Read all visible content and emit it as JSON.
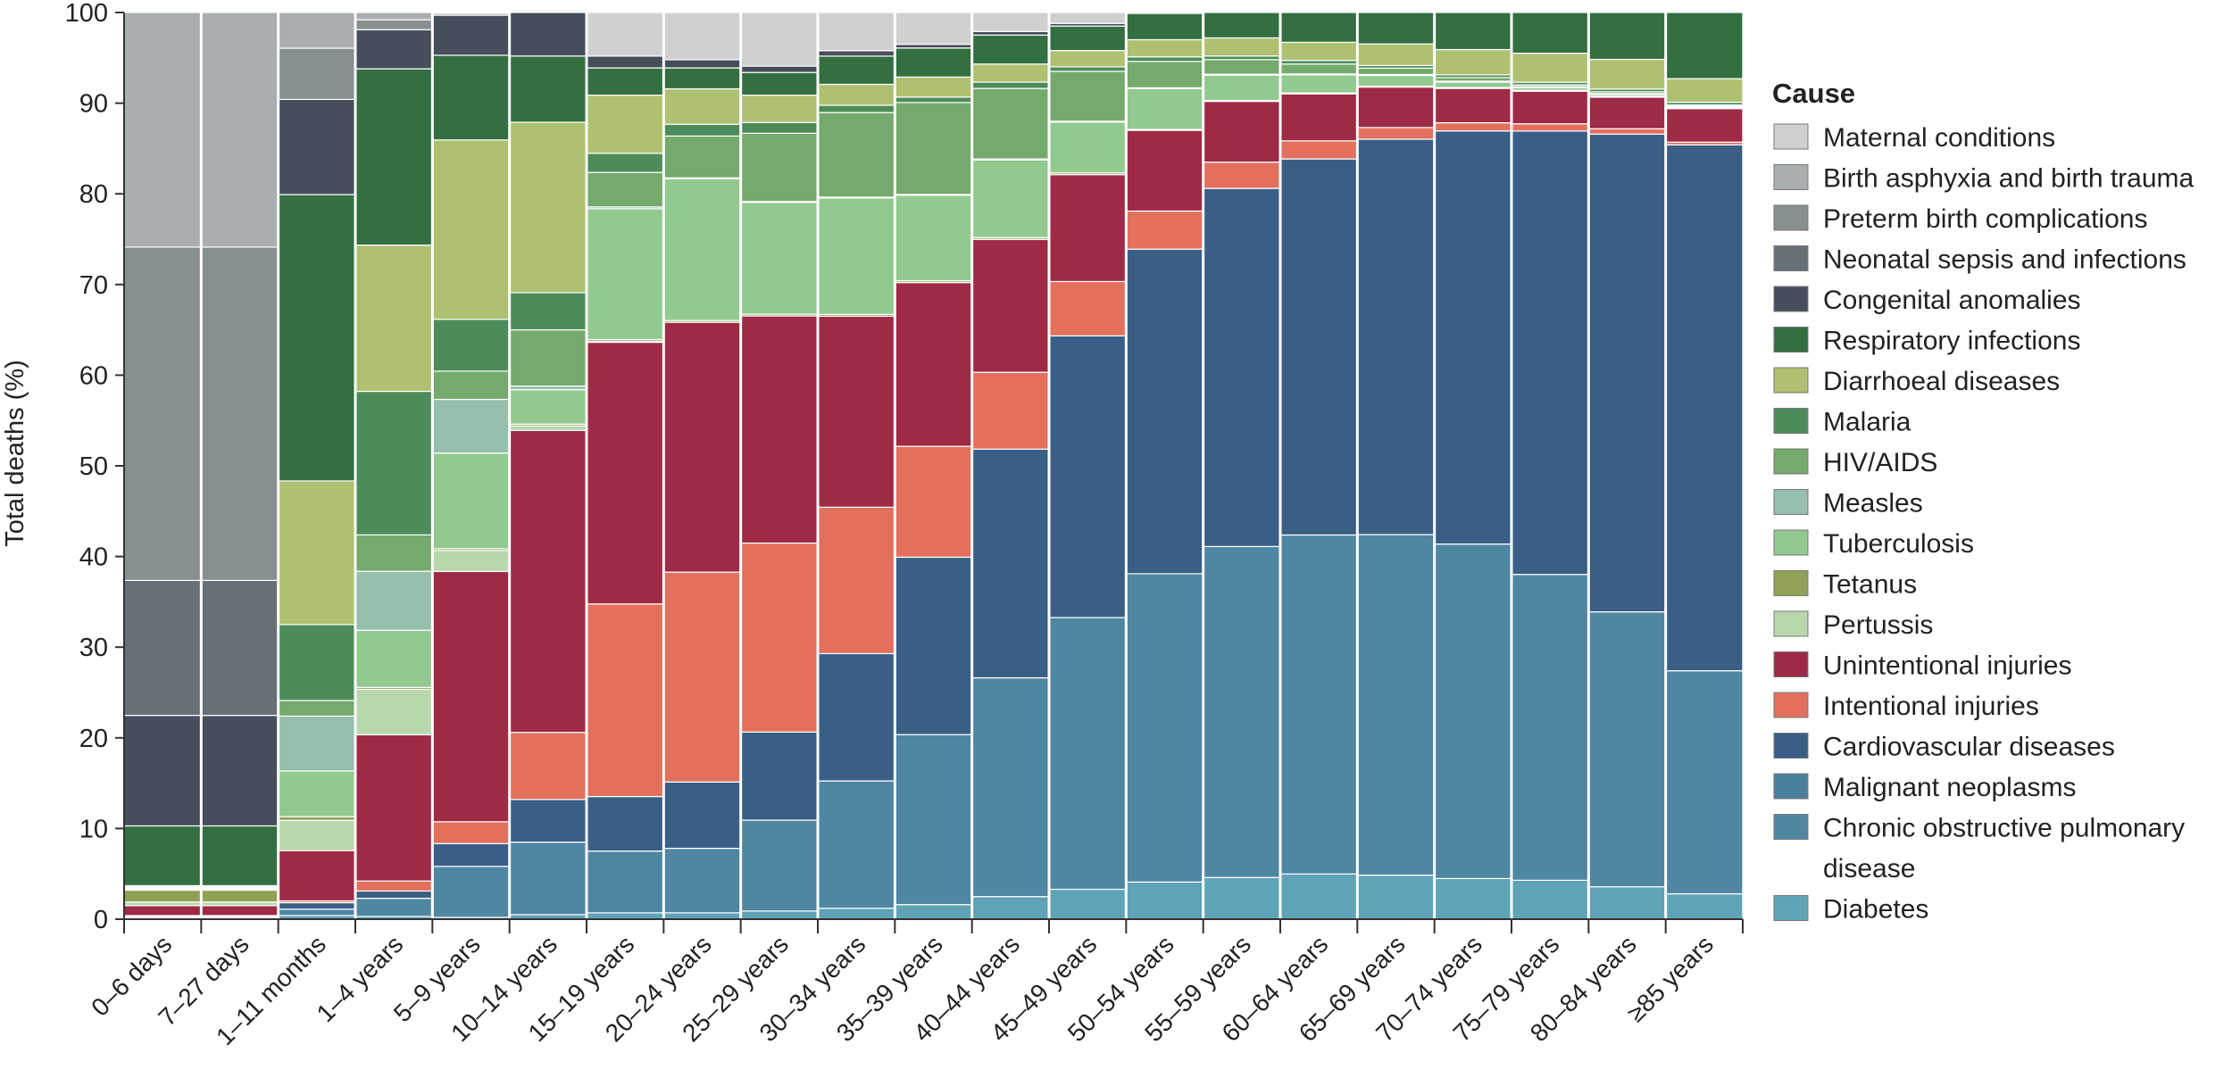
{
  "chart_data": {
    "type": "bar",
    "stacked": true,
    "normalized": true,
    "title": "",
    "xlabel": "",
    "ylabel": "Total deaths (%)",
    "ylim": [
      0,
      100
    ],
    "yticks": [
      0,
      10,
      20,
      30,
      40,
      50,
      60,
      70,
      80,
      90,
      100
    ],
    "legend_title": "Cause",
    "legend_position": "right",
    "categories": [
      "0–6 days",
      "7–27 days",
      "1–11 months",
      "1–4 years",
      "5–9 years",
      "10–14 years",
      "15–19 years",
      "20–24 years",
      "25–29 years",
      "30–34 years",
      "35–39 years",
      "40–44 years",
      "45–49 years",
      "50–54 years",
      "55–59 years",
      "60–64 years",
      "65–69 years",
      "70–74 years",
      "75–79 years",
      "80–84 years",
      "≥85 years"
    ],
    "series": [
      {
        "name": "Diabetes",
        "color": "#5fa3b7",
        "values": [
          0.1,
          0.1,
          0.4,
          0.3,
          0.2,
          0.5,
          0.7,
          0.7,
          0.9,
          1.2,
          1.6,
          2.5,
          3.3,
          4.1,
          4.6,
          5.0,
          4.9,
          4.5,
          4.3,
          3.6,
          2.8
        ]
      },
      {
        "name": "Chronic obstructive pulmonary disease",
        "color": "#4f86a2",
        "values": [
          0.1,
          0.1,
          0.7,
          2.0,
          5.6,
          8.0,
          6.8,
          7.1,
          10.0,
          14.0,
          18.7,
          24.2,
          30.0,
          34.0,
          36.5,
          37.5,
          37.9,
          37.0,
          33.8,
          30.5,
          24.6
        ]
      },
      {
        "name": "Malignant neoplasms",
        "color": "#48809e",
        "values": [
          0,
          0,
          0,
          0,
          0,
          0,
          0,
          0,
          0,
          0,
          0,
          0,
          0,
          0,
          0,
          0,
          0,
          0,
          0,
          0,
          0
        ]
      },
      {
        "name": "Cardiovascular diseases",
        "color": "#3a5f86",
        "values": [
          0.1,
          0.1,
          0.7,
          0.8,
          2.5,
          4.7,
          6.0,
          7.3,
          9.7,
          14.0,
          19.5,
          25.3,
          31.1,
          35.8,
          39.5,
          41.6,
          44.0,
          45.7,
          49.0,
          53.0,
          58.0
        ]
      },
      {
        "name": "Intentional injuries",
        "color": "#e2705d",
        "values": [
          0.1,
          0.1,
          0.2,
          1.1,
          2.4,
          7.4,
          21.2,
          23.1,
          20.8,
          16.1,
          12.2,
          8.5,
          6.0,
          4.2,
          2.9,
          2.0,
          1.3,
          0.9,
          0.8,
          0.6,
          0.3
        ]
      },
      {
        "name": "Unintentional injuries",
        "color": "#9e2a46",
        "values": [
          1.1,
          1.1,
          5.5,
          16.1,
          27.5,
          33.3,
          28.8,
          27.5,
          25.0,
          21.0,
          18.0,
          14.7,
          11.8,
          8.9,
          6.7,
          5.2,
          4.5,
          3.8,
          3.6,
          3.5,
          3.7
        ]
      },
      {
        "name": "Pertussis",
        "color": "#b9d7ac",
        "values": [
          0.4,
          0.4,
          3.3,
          5.0,
          2.3,
          0.5,
          0.1,
          0,
          0,
          0,
          0,
          0,
          0,
          0,
          0,
          0,
          0,
          0,
          0,
          0,
          0
        ]
      },
      {
        "name": "Tetanus",
        "color": "#8fa154",
        "values": [
          1.3,
          1.3,
          0.4,
          0.2,
          0.2,
          0.2,
          0.2,
          0.2,
          0.2,
          0.2,
          0.2,
          0.2,
          0.2,
          0.1,
          0.1,
          0.1,
          0.1,
          0.1,
          0.1,
          0.1,
          0.1
        ]
      },
      {
        "name": "Tuberculosis",
        "color": "#92c98f",
        "values": [
          0.1,
          0.1,
          5.0,
          6.3,
          10.5,
          3.8,
          14.4,
          15.6,
          12.3,
          12.8,
          9.4,
          8.6,
          5.6,
          4.5,
          2.8,
          2.0,
          1.2,
          0.6,
          0.3,
          0.2,
          0.1
        ]
      },
      {
        "name": "Measles",
        "color": "#96bfad",
        "values": [
          0.1,
          0.1,
          6.0,
          6.5,
          5.9,
          0.4,
          0.2,
          0.1,
          0.1,
          0.1,
          0.1,
          0.1,
          0.1,
          0.1,
          0.1,
          0.1,
          0.1,
          0.1,
          0.1,
          0.1,
          0.1
        ]
      },
      {
        "name": "HIV/AIDS",
        "color": "#74aa6b",
        "values": [
          0.1,
          0.1,
          1.7,
          4.0,
          3.1,
          6.2,
          3.8,
          4.6,
          7.5,
          9.3,
          10.1,
          7.8,
          5.5,
          2.9,
          1.6,
          1.1,
          0.7,
          0.4,
          0.2,
          0.2,
          0.1
        ]
      },
      {
        "name": "Malaria",
        "color": "#4d8c5a",
        "values": [
          0.1,
          0.1,
          8.3,
          15.8,
          5.7,
          4.1,
          2.1,
          1.3,
          1.2,
          0.8,
          0.6,
          0.7,
          0.5,
          0.5,
          0.4,
          0.4,
          0.3,
          0.3,
          0.3,
          0.3,
          0.3
        ]
      },
      {
        "name": "Diarrhoeal diseases",
        "color": "#adc171",
        "values": [
          0.1,
          0.1,
          15.7,
          16.1,
          19.7,
          18.8,
          6.4,
          3.9,
          3.0,
          2.3,
          2.2,
          2.0,
          1.8,
          1.9,
          2.0,
          2.0,
          2.4,
          2.8,
          3.2,
          3.3,
          2.6
        ]
      },
      {
        "name": "Respiratory infections",
        "color": "#336f41",
        "values": [
          6.6,
          6.6,
          31.3,
          19.4,
          9.3,
          7.3,
          3.0,
          2.3,
          2.5,
          3.1,
          3.2,
          3.2,
          2.7,
          2.9,
          2.8,
          3.3,
          3.5,
          4.1,
          4.5,
          5.2,
          7.3
        ]
      },
      {
        "name": "Congenital anomalies",
        "color": "#464e5b",
        "values": [
          12.2,
          12.2,
          10.4,
          4.3,
          4.4,
          4.8,
          1.3,
          0.9,
          0.7,
          0.6,
          0.4,
          0.4,
          0.3,
          0.1,
          0,
          0,
          0,
          0,
          0,
          0,
          0
        ]
      },
      {
        "name": "Neonatal sepsis and infections",
        "color": "#687077",
        "values": [
          14.9,
          14.9,
          0,
          0,
          0,
          0,
          0,
          0,
          0,
          0,
          0,
          0,
          0,
          0,
          0,
          0,
          0,
          0,
          0,
          0,
          0
        ]
      },
      {
        "name": "Preterm birth complications",
        "color": "#878f91",
        "values": [
          36.8,
          36.8,
          5.6,
          1.1,
          0.2,
          0,
          0,
          0,
          0,
          0,
          0,
          0,
          0,
          0,
          0,
          0,
          0,
          0,
          0,
          0,
          0
        ]
      },
      {
        "name": "Birth asphyxia and birth trauma",
        "color": "#a9aeb0",
        "values": [
          25.9,
          25.9,
          3.9,
          0.8,
          0.1,
          0,
          0,
          0,
          0,
          0,
          0,
          0,
          0,
          0,
          0,
          0,
          0,
          0,
          0,
          0,
          0
        ]
      },
      {
        "name": "Maternal conditions",
        "color": "#cfd0d1",
        "values": [
          0,
          0,
          0,
          0,
          0,
          0,
          4.8,
          5.2,
          5.9,
          4.2,
          3.5,
          2.1,
          1.2,
          0,
          0,
          0,
          0,
          0,
          0,
          0,
          0
        ]
      }
    ],
    "legend_order": [
      "Maternal conditions",
      "Birth asphyxia and birth trauma",
      "Preterm birth complications",
      "Neonatal sepsis and infections",
      "Congenital anomalies",
      "Respiratory infections",
      "Diarrhoeal diseases",
      "Malaria",
      "HIV/AIDS",
      "Measles",
      "Tuberculosis",
      "Tetanus",
      "Pertussis",
      "Unintentional injuries",
      "Intentional injuries",
      "Cardiovascular diseases",
      "Malignant neoplasms",
      "Chronic obstructive pulmonary disease",
      "Diabetes"
    ]
  }
}
